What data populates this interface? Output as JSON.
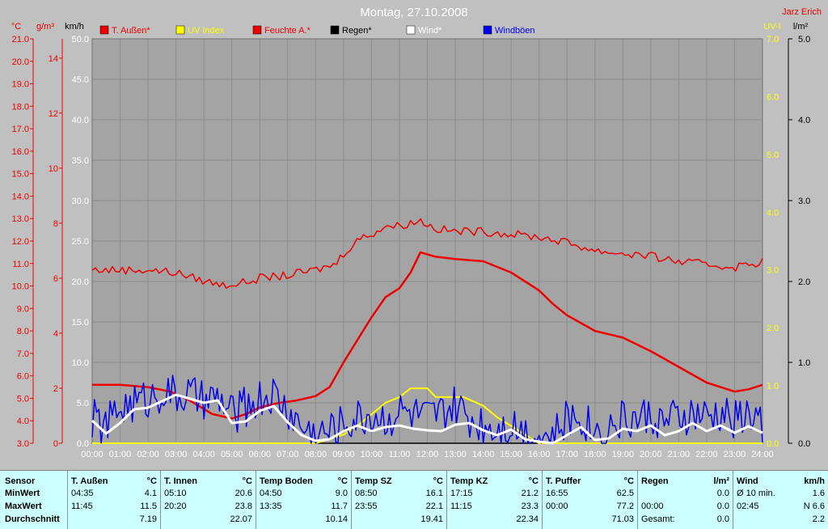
{
  "header": {
    "title": "Montag, 27.10.2008",
    "author": "Jarz Erich"
  },
  "colors": {
    "bg": "#c0c0c0",
    "plot_bg": "#a4a4a4",
    "grid": "#8c8c8c",
    "red": "#ee0000",
    "yellow": "#ffff00",
    "blue": "#0000ee",
    "white": "#ffffff",
    "black": "#000000"
  },
  "axes": {
    "temp_unit": "°C",
    "hum_unit": "g/m³",
    "wind_unit": "km/h",
    "uv_unit": "UV-I",
    "rain_unit": "l/m²",
    "temp_ticks": [
      "3.0",
      "4.0",
      "5.0",
      "6.0",
      "7.0",
      "8.0",
      "9.0",
      "10.0",
      "11.0",
      "12.0",
      "13.0",
      "14.0",
      "15.0",
      "16.0",
      "17.0",
      "18.0",
      "19.0",
      "20.0",
      "21.0"
    ],
    "hum_ticks": [
      "0",
      "2",
      "4",
      "6",
      "8",
      "10",
      "12",
      "14"
    ],
    "wind_ticks": [
      "0.0",
      "5.0",
      "10.0",
      "15.0",
      "20.0",
      "25.0",
      "30.0",
      "35.0",
      "40.0",
      "45.0",
      "50.0"
    ],
    "uv_ticks": [
      "0.0",
      "1.0",
      "2.0",
      "3.0",
      "4.0",
      "5.0",
      "6.0",
      "7.0"
    ],
    "rain_ticks": [
      "0.0",
      "1.0",
      "2.0",
      "3.0",
      "4.0",
      "5.0"
    ],
    "x_ticks": [
      "00:00",
      "01:00",
      "02:00",
      "03:00",
      "04:00",
      "05:00",
      "06:00",
      "07:00",
      "08:00",
      "09:00",
      "10:00",
      "11:00",
      "12:00",
      "13:00",
      "14:00",
      "15:00",
      "16:00",
      "17:00",
      "18:00",
      "19:00",
      "20:00",
      "21:00",
      "22:00",
      "23:00",
      "24:00"
    ]
  },
  "chart_data": {
    "type": "line",
    "title": "Montag, 27.10.2008",
    "x_unit": "hour",
    "xlim": [
      0,
      24
    ],
    "grid": true,
    "legend_position": "top",
    "axes_ranges": {
      "temp_c": [
        3,
        21
      ],
      "humidity_gm3": [
        0,
        14.7
      ],
      "wind_kmh": [
        0,
        50
      ],
      "uv_index": [
        0,
        7
      ],
      "rain_lm2": [
        0,
        5
      ]
    },
    "series": [
      {
        "name": "T. Außen*",
        "color": "#ee0000",
        "axis": "temp_c",
        "noisy": false,
        "points": [
          [
            0,
            5.6
          ],
          [
            1,
            5.6
          ],
          [
            2,
            5.5
          ],
          [
            2.8,
            5.3
          ],
          [
            3.5,
            4.9
          ],
          [
            4.3,
            4.3
          ],
          [
            5,
            4.1
          ],
          [
            5.5,
            4.3
          ],
          [
            6,
            4.6
          ],
          [
            6.7,
            4.8
          ],
          [
            7.3,
            4.9
          ],
          [
            8,
            5.1
          ],
          [
            8.5,
            5.5
          ],
          [
            9,
            6.6
          ],
          [
            9.5,
            7.6
          ],
          [
            10,
            8.6
          ],
          [
            10.5,
            9.5
          ],
          [
            11,
            9.9
          ],
          [
            11.4,
            10.6
          ],
          [
            11.75,
            11.5
          ],
          [
            12.3,
            11.3
          ],
          [
            13,
            11.2
          ],
          [
            14,
            11.1
          ],
          [
            15,
            10.6
          ],
          [
            16,
            9.8
          ],
          [
            16.5,
            9.2
          ],
          [
            17,
            8.7
          ],
          [
            18,
            8.0
          ],
          [
            19,
            7.7
          ],
          [
            20,
            7.1
          ],
          [
            21,
            6.4
          ],
          [
            22,
            5.7
          ],
          [
            22.5,
            5.5
          ],
          [
            23,
            5.3
          ],
          [
            23.5,
            5.4
          ],
          [
            24,
            5.6
          ]
        ]
      },
      {
        "name": "UV Index",
        "color": "#ffff00",
        "axis": "uv_index",
        "noisy": false,
        "points": [
          [
            0,
            0
          ],
          [
            8,
            0
          ],
          [
            9,
            0.15
          ],
          [
            9.5,
            0.3
          ],
          [
            10,
            0.5
          ],
          [
            10.5,
            0.7
          ],
          [
            11,
            0.8
          ],
          [
            11.4,
            0.95
          ],
          [
            12,
            0.95
          ],
          [
            12.3,
            0.8
          ],
          [
            13.3,
            0.8
          ],
          [
            14,
            0.65
          ],
          [
            14.5,
            0.45
          ],
          [
            15,
            0.3
          ],
          [
            15.5,
            0.15
          ],
          [
            16,
            0
          ],
          [
            24,
            0
          ]
        ]
      },
      {
        "name": "Feuchte A.*",
        "color": "#ee0000",
        "axis": "humidity_gm3",
        "noisy": true,
        "points": [
          [
            0,
            6.3
          ],
          [
            1,
            6.3
          ],
          [
            2,
            6.3
          ],
          [
            3,
            6.2
          ],
          [
            4,
            5.9
          ],
          [
            4.7,
            5.75
          ],
          [
            5.5,
            5.85
          ],
          [
            6,
            6.0
          ],
          [
            7,
            6.1
          ],
          [
            8,
            6.3
          ],
          [
            8.7,
            6.5
          ],
          [
            9,
            6.9
          ],
          [
            9.5,
            7.4
          ],
          [
            10,
            7.6
          ],
          [
            10.5,
            7.9
          ],
          [
            11,
            7.9
          ],
          [
            11.75,
            8.1
          ],
          [
            12.3,
            7.8
          ],
          [
            13,
            7.7
          ],
          [
            14,
            7.7
          ],
          [
            15,
            7.6
          ],
          [
            16,
            7.5
          ],
          [
            17,
            7.3
          ],
          [
            18,
            7.0
          ],
          [
            19,
            6.9
          ],
          [
            20,
            6.8
          ],
          [
            21,
            6.6
          ],
          [
            22,
            6.5
          ],
          [
            23,
            6.4
          ],
          [
            24,
            6.6
          ]
        ]
      },
      {
        "name": "Regen*",
        "color": "#000000",
        "axis": "rain_lm2",
        "noisy": false,
        "points": [
          [
            0,
            0
          ],
          [
            24,
            0
          ]
        ]
      },
      {
        "name": "Wind*",
        "color": "#ffffff",
        "axis": "wind_kmh",
        "noisy": false,
        "points": [
          [
            0,
            2.8
          ],
          [
            0.5,
            1.2
          ],
          [
            1,
            2.5
          ],
          [
            1.5,
            4.2
          ],
          [
            2,
            4.4
          ],
          [
            2.5,
            5.2
          ],
          [
            3,
            6.0
          ],
          [
            3.5,
            5.5
          ],
          [
            4,
            5.0
          ],
          [
            4.5,
            5.3
          ],
          [
            5,
            2.5
          ],
          [
            5.5,
            2.7
          ],
          [
            6,
            4.0
          ],
          [
            6.5,
            4.6
          ],
          [
            7,
            2.6
          ],
          [
            7.5,
            1.0
          ],
          [
            8,
            0.3
          ],
          [
            8.5,
            0.5
          ],
          [
            9,
            1.5
          ],
          [
            9.5,
            2.2
          ],
          [
            10,
            1.5
          ],
          [
            10.5,
            2.0
          ],
          [
            11,
            2.2
          ],
          [
            11.5,
            1.8
          ],
          [
            12,
            1.6
          ],
          [
            12.5,
            1.5
          ],
          [
            13,
            2.3
          ],
          [
            13.5,
            2.5
          ],
          [
            14,
            1.6
          ],
          [
            14.5,
            1.0
          ],
          [
            15,
            1.7
          ],
          [
            15.5,
            0.5
          ],
          [
            16,
            0.2
          ],
          [
            16.5,
            0
          ],
          [
            17,
            1.0
          ],
          [
            17.5,
            2.0
          ],
          [
            18,
            0.4
          ],
          [
            18.5,
            0.6
          ],
          [
            19,
            1.8
          ],
          [
            19.5,
            1.5
          ],
          [
            20,
            2.2
          ],
          [
            20.5,
            1.0
          ],
          [
            21,
            1.5
          ],
          [
            21.5,
            2.5
          ],
          [
            22,
            1.5
          ],
          [
            22.5,
            2.2
          ],
          [
            23,
            1.3
          ],
          [
            23.5,
            2.1
          ],
          [
            24,
            1.3
          ]
        ]
      },
      {
        "name": "Windböen",
        "color": "#0000ee",
        "axis": "wind_kmh",
        "noisy": true,
        "points": [
          [
            0,
            3.0
          ],
          [
            0.5,
            2.0
          ],
          [
            1,
            4.5
          ],
          [
            1.5,
            5.0
          ],
          [
            2,
            5.5
          ],
          [
            2.5,
            6.5
          ],
          [
            3,
            5.8
          ],
          [
            3.5,
            6.0
          ],
          [
            4,
            5.0
          ],
          [
            4.5,
            5.5
          ],
          [
            5,
            3.5
          ],
          [
            5.5,
            4.5
          ],
          [
            6,
            5.5
          ],
          [
            6.5,
            6.0
          ],
          [
            7,
            4.0
          ],
          [
            7.5,
            2.0
          ],
          [
            8,
            1.0
          ],
          [
            8.5,
            1.5
          ],
          [
            9,
            2.5
          ],
          [
            9.5,
            3.0
          ],
          [
            10,
            3.5
          ],
          [
            10.5,
            3.0
          ],
          [
            11,
            4.0
          ],
          [
            11.5,
            3.5
          ],
          [
            12,
            3.0
          ],
          [
            12.5,
            3.5
          ],
          [
            13,
            4.5
          ],
          [
            13.5,
            3.0
          ],
          [
            14,
            2.5
          ],
          [
            14.5,
            2.0
          ],
          [
            15,
            2.5
          ],
          [
            15.5,
            1.5
          ],
          [
            16,
            1.0
          ],
          [
            16.5,
            0.5
          ],
          [
            17,
            3.0
          ],
          [
            17.5,
            3.5
          ],
          [
            18,
            1.5
          ],
          [
            18.5,
            2.0
          ],
          [
            19,
            3.0
          ],
          [
            19.5,
            3.0
          ],
          [
            20,
            3.5
          ],
          [
            20.5,
            2.5
          ],
          [
            21,
            3.0
          ],
          [
            21.5,
            3.5
          ],
          [
            22,
            3.0
          ],
          [
            22.5,
            3.5
          ],
          [
            23,
            3.0
          ],
          [
            23.5,
            3.5
          ],
          [
            24,
            2.5
          ]
        ]
      }
    ]
  },
  "stats": {
    "label_col": [
      "Sensor",
      "MinWert",
      "MaxWert",
      "Durchschnitt"
    ],
    "columns": [
      {
        "name": "T. Außen",
        "unit": "°C",
        "min_time": "04:35",
        "min": "4.1",
        "max_time": "11:45",
        "max": "11.5",
        "avg": "7.19"
      },
      {
        "name": "T. Innen",
        "unit": "°C",
        "min_time": "05:10",
        "min": "20.6",
        "max_time": "20:20",
        "max": "23.8",
        "avg": "22.07"
      },
      {
        "name": "Temp Boden",
        "unit": "°C",
        "min_time": "04:50",
        "min": "9.0",
        "max_time": "13:35",
        "max": "11.7",
        "avg": "10.14"
      },
      {
        "name": "Temp SZ",
        "unit": "°C",
        "min_time": "08:50",
        "min": "16.1",
        "max_time": "23:55",
        "max": "22.1",
        "avg": "19.41"
      },
      {
        "name": "Temp KZ",
        "unit": "°C",
        "min_time": "17:15",
        "min": "21.2",
        "max_time": "11:15",
        "max": "23.3",
        "avg": "22.34"
      },
      {
        "name": "T. Puffer",
        "unit": "°C",
        "min_time": "16:55",
        "min": "62.5",
        "max_time": "00:00",
        "max": "77.2",
        "avg": "71.03"
      },
      {
        "name": "Regen",
        "unit": "l/m²",
        "min_time": "",
        "min": "0.0",
        "max_time": "00:00",
        "max": "0.0",
        "avg_label": "Gesamt:",
        "avg": "0.0"
      },
      {
        "name": "Wind",
        "unit": "km/h",
        "min_time": "Ø 10 min.",
        "min": "1.6",
        "max_time": "02:45",
        "max": "N 6.6",
        "avg": "2.2"
      }
    ]
  }
}
